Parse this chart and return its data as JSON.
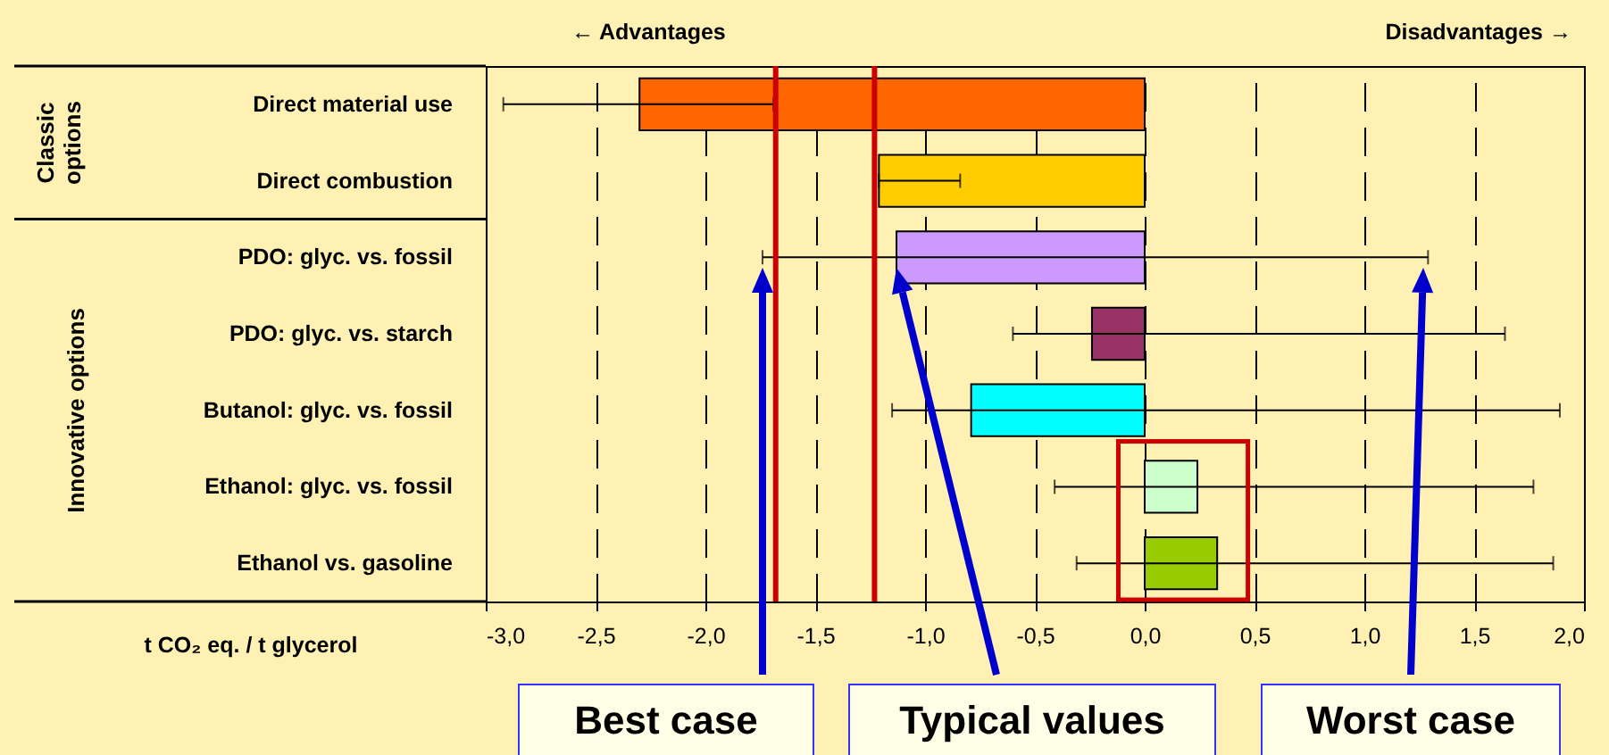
{
  "chart_data": {
    "type": "bar",
    "orientation": "horizontal",
    "categories": [
      "Direct material use",
      "Direct combustion",
      "PDO: glyc. vs. fossil",
      "PDO: glyc. vs. starch",
      "Butanol: glyc. vs. fossil",
      "Ethanol: glyc. vs. fossil",
      "Ethanol vs. gasoline"
    ],
    "values": [
      -2.3,
      -1.21,
      -1.13,
      -0.24,
      -0.79,
      0.24,
      0.33
    ],
    "colors": [
      "#ff6600",
      "#ffcc00",
      "#cc99ff",
      "#993366",
      "#00ffff",
      "#ccffcc",
      "#99cc00"
    ],
    "errors": [
      [
        -2.92,
        -1.69
      ],
      [
        -1.21,
        -0.84
      ],
      [
        -1.74,
        1.29
      ],
      [
        -0.6,
        1.64
      ],
      [
        -1.15,
        1.89
      ],
      [
        -0.41,
        1.77
      ],
      [
        -0.31,
        1.86
      ]
    ],
    "xlim": [
      -3,
      2
    ],
    "xticks": [
      {
        "value": -3,
        "label": "-3,0"
      },
      {
        "value": -2.5,
        "label": "-2,5"
      },
      {
        "value": -2,
        "label": "-2,0"
      },
      {
        "value": -1.5,
        "label": "-1,5"
      },
      {
        "value": -1,
        "label": "-1,0"
      },
      {
        "value": -0.5,
        "label": "-0,5"
      },
      {
        "value": 0,
        "label": "0,0"
      },
      {
        "value": 0.5,
        "label": "0,5"
      },
      {
        "value": 1,
        "label": "1,0"
      },
      {
        "value": 1.5,
        "label": "1,5"
      },
      {
        "value": 2,
        "label": "2,0"
      }
    ],
    "xlabel": "t CO₂ eq. / t glycerol",
    "grid": "x",
    "ref_lines": [
      {
        "axis": "x",
        "value": -1.68,
        "color": "#cc0000"
      },
      {
        "axis": "x",
        "value": -1.23,
        "color": "#cc0000"
      }
    ],
    "annotations": [
      "← Advantages",
      "Disadvantages →",
      "Classic options",
      "Innovative options",
      "Best case",
      {
        "text": "Typical values",
        "x": -1.13,
        "y": "PDO: glyc. vs. fossil"
      },
      "Worst case"
    ]
  }
}
